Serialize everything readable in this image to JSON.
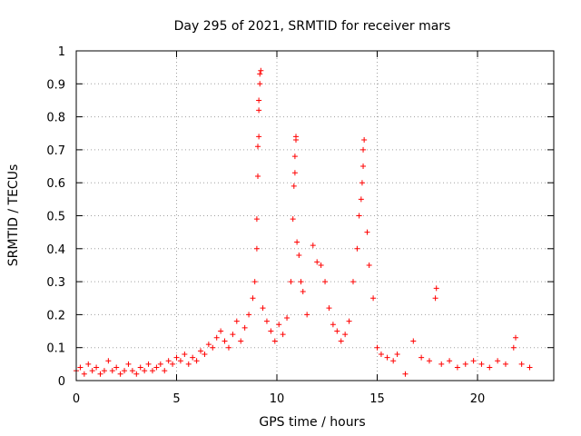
{
  "chart_data": {
    "type": "scatter",
    "title": "Day 295 of 2021, SRMTID for receiver mars",
    "xlabel": "GPS time / hours",
    "ylabel": "SRMTID / TECUs",
    "xlim": [
      0,
      23.8
    ],
    "ylim": [
      0,
      1
    ],
    "grid": true,
    "marker": "+",
    "color": "#ff0000",
    "x_ticks": [
      "0",
      "5",
      "10",
      "15",
      "20"
    ],
    "x_tick_values": [
      0,
      5,
      10,
      15,
      20
    ],
    "y_ticks": [
      "0",
      "0.1",
      "0.2",
      "0.3",
      "0.4",
      "0.5",
      "0.6",
      "0.7",
      "0.8",
      "0.9",
      "1"
    ],
    "y_tick_values": [
      0,
      0.1,
      0.2,
      0.3,
      0.4,
      0.5,
      0.6,
      0.7,
      0.8,
      0.9,
      1
    ],
    "series": [
      {
        "name": "SRMTID",
        "points": [
          [
            0.0,
            0.03
          ],
          [
            0.2,
            0.04
          ],
          [
            0.4,
            0.02
          ],
          [
            0.6,
            0.05
          ],
          [
            0.8,
            0.03
          ],
          [
            1.0,
            0.04
          ],
          [
            1.2,
            0.02
          ],
          [
            1.4,
            0.03
          ],
          [
            1.6,
            0.06
          ],
          [
            1.8,
            0.03
          ],
          [
            2.0,
            0.04
          ],
          [
            2.2,
            0.02
          ],
          [
            2.4,
            0.03
          ],
          [
            2.6,
            0.05
          ],
          [
            2.8,
            0.03
          ],
          [
            3.0,
            0.02
          ],
          [
            3.2,
            0.04
          ],
          [
            3.4,
            0.03
          ],
          [
            3.6,
            0.05
          ],
          [
            3.8,
            0.03
          ],
          [
            4.0,
            0.04
          ],
          [
            4.2,
            0.05
          ],
          [
            4.4,
            0.03
          ],
          [
            4.6,
            0.06
          ],
          [
            4.8,
            0.05
          ],
          [
            5.0,
            0.07
          ],
          [
            5.2,
            0.06
          ],
          [
            5.4,
            0.08
          ],
          [
            5.6,
            0.05
          ],
          [
            5.8,
            0.07
          ],
          [
            6.0,
            0.06
          ],
          [
            6.2,
            0.09
          ],
          [
            6.4,
            0.08
          ],
          [
            6.6,
            0.11
          ],
          [
            6.8,
            0.1
          ],
          [
            7.0,
            0.13
          ],
          [
            7.2,
            0.15
          ],
          [
            7.4,
            0.12
          ],
          [
            7.6,
            0.1
          ],
          [
            7.8,
            0.14
          ],
          [
            8.0,
            0.18
          ],
          [
            8.2,
            0.12
          ],
          [
            8.4,
            0.16
          ],
          [
            8.6,
            0.2
          ],
          [
            8.8,
            0.25
          ],
          [
            8.9,
            0.3
          ],
          [
            9.0,
            0.4
          ],
          [
            9.0,
            0.49
          ],
          [
            9.05,
            0.62
          ],
          [
            9.05,
            0.71
          ],
          [
            9.1,
            0.74
          ],
          [
            9.1,
            0.82
          ],
          [
            9.1,
            0.85
          ],
          [
            9.15,
            0.9
          ],
          [
            9.15,
            0.93
          ],
          [
            9.2,
            0.94
          ],
          [
            9.3,
            0.22
          ],
          [
            9.5,
            0.18
          ],
          [
            9.7,
            0.15
          ],
          [
            9.9,
            0.12
          ],
          [
            10.1,
            0.17
          ],
          [
            10.3,
            0.14
          ],
          [
            10.5,
            0.19
          ],
          [
            10.7,
            0.3
          ],
          [
            10.8,
            0.49
          ],
          [
            10.85,
            0.59
          ],
          [
            10.9,
            0.63
          ],
          [
            10.9,
            0.68
          ],
          [
            10.95,
            0.73
          ],
          [
            10.95,
            0.74
          ],
          [
            11.0,
            0.42
          ],
          [
            11.1,
            0.38
          ],
          [
            11.2,
            0.3
          ],
          [
            11.3,
            0.27
          ],
          [
            11.5,
            0.2
          ],
          [
            11.8,
            0.41
          ],
          [
            12.0,
            0.36
          ],
          [
            12.2,
            0.35
          ],
          [
            12.4,
            0.3
          ],
          [
            12.6,
            0.22
          ],
          [
            12.8,
            0.17
          ],
          [
            13.0,
            0.15
          ],
          [
            13.2,
            0.12
          ],
          [
            13.4,
            0.14
          ],
          [
            13.6,
            0.18
          ],
          [
            13.8,
            0.3
          ],
          [
            14.0,
            0.4
          ],
          [
            14.1,
            0.5
          ],
          [
            14.2,
            0.55
          ],
          [
            14.25,
            0.6
          ],
          [
            14.3,
            0.65
          ],
          [
            14.3,
            0.7
          ],
          [
            14.35,
            0.73
          ],
          [
            14.5,
            0.45
          ],
          [
            14.6,
            0.35
          ],
          [
            14.8,
            0.25
          ],
          [
            15.0,
            0.1
          ],
          [
            15.2,
            0.08
          ],
          [
            15.5,
            0.07
          ],
          [
            15.8,
            0.06
          ],
          [
            16.0,
            0.08
          ],
          [
            16.4,
            0.02
          ],
          [
            16.8,
            0.12
          ],
          [
            17.2,
            0.07
          ],
          [
            17.6,
            0.06
          ],
          [
            17.9,
            0.25
          ],
          [
            17.95,
            0.28
          ],
          [
            18.2,
            0.05
          ],
          [
            18.6,
            0.06
          ],
          [
            19.0,
            0.04
          ],
          [
            19.4,
            0.05
          ],
          [
            19.8,
            0.06
          ],
          [
            20.2,
            0.05
          ],
          [
            20.6,
            0.04
          ],
          [
            21.0,
            0.06
          ],
          [
            21.4,
            0.05
          ],
          [
            21.8,
            0.1
          ],
          [
            21.9,
            0.13
          ],
          [
            22.2,
            0.05
          ],
          [
            22.6,
            0.04
          ]
        ]
      }
    ]
  }
}
